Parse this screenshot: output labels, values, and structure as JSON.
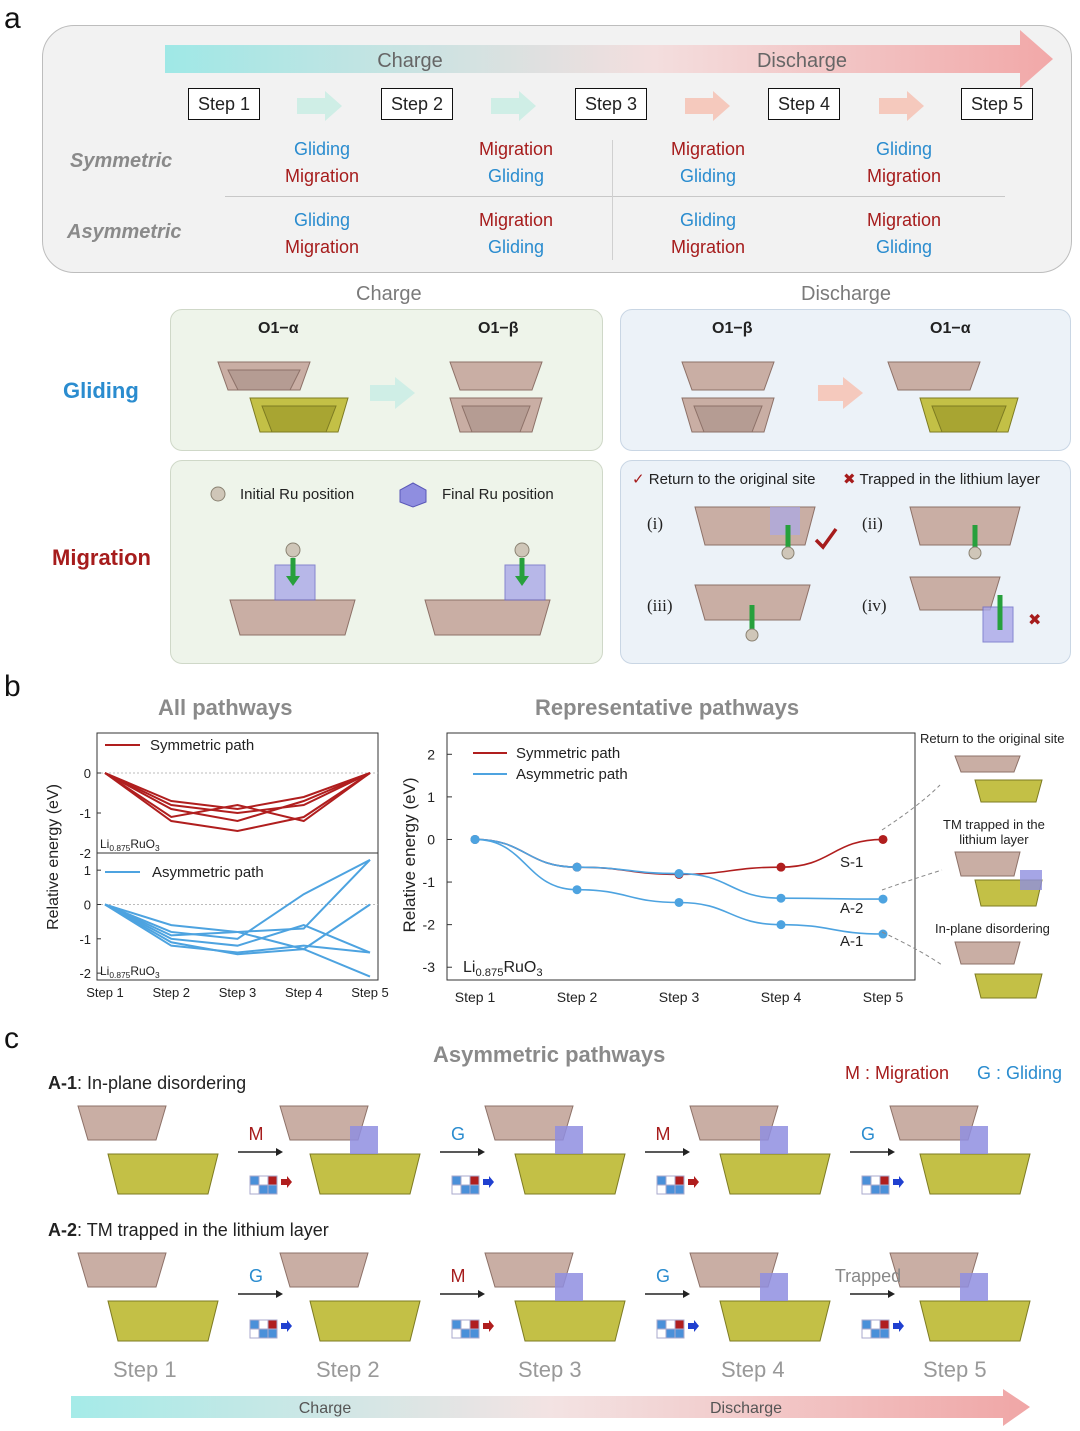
{
  "panel_labels": {
    "a": "a",
    "b": "b",
    "c": "c"
  },
  "panel_a": {
    "arrow_charge": "Charge",
    "arrow_discharge": "Discharge",
    "steps": [
      "Step 1",
      "Step 2",
      "Step 3",
      "Step 4",
      "Step 5"
    ],
    "symmetric_label": "Symmetric",
    "asymmetric_label": "Asymmetric",
    "symmetric": [
      [
        "Gliding",
        "Migration"
      ],
      [
        "Migration",
        "Gliding"
      ],
      [
        "Migration",
        "Gliding"
      ],
      [
        "Gliding",
        "Migration"
      ]
    ],
    "asymmetric": [
      [
        "Gliding",
        "Migration"
      ],
      [
        "Migration",
        "Gliding"
      ],
      [
        "Gliding",
        "Migration"
      ],
      [
        "Migration",
        "Gliding"
      ]
    ],
    "charge_heading": "Charge",
    "discharge_heading": "Discharge",
    "gliding_label": "Gliding",
    "migration_label": "Migration",
    "o1_alpha": "O1−α",
    "o1_beta": "O1−β",
    "initial_ru": "Initial Ru position",
    "final_ru": "Final Ru position",
    "return_label": "Return to the original site",
    "trapped_label": "Trapped in the lithium layer",
    "roman": [
      "(i)",
      "(ii)",
      "(iii)",
      "(iv)"
    ],
    "check_mark": "✓",
    "cross_mark": "✖"
  },
  "panel_b": {
    "all_title": "All pathways",
    "rep_title": "Representative pathways",
    "ylabel": "Relative energy (eV)",
    "sym_legend": "Symmetric path",
    "asym_legend": "Asymmetric path",
    "formula_base": "Li",
    "formula_sub": "0.875",
    "formula_tail": "RuO",
    "formula_sub3": "3",
    "side_return": "Return to the original site",
    "side_trapped_1": "TM trapped in the",
    "side_trapped_2": "lithium layer",
    "side_disorder": "In-plane disordering",
    "curve_labels": [
      "S-1",
      "A-2",
      "A-1"
    ]
  },
  "chart_data": [
    {
      "type": "line",
      "title": "All pathways",
      "panel": "top",
      "x": [
        "Step 1",
        "Step 2",
        "Step 3",
        "Step 4",
        "Step 5"
      ],
      "ylim": [
        -2,
        1
      ],
      "yticks": [
        0,
        -1,
        -2
      ],
      "series": [
        {
          "name": "Symmetric path",
          "values": [
            0,
            -0.7,
            -0.9,
            -0.6,
            0
          ]
        },
        {
          "values": [
            0,
            -0.8,
            -1.0,
            -0.8,
            0
          ]
        },
        {
          "values": [
            0,
            -1.1,
            -0.8,
            -1.2,
            0
          ]
        },
        {
          "values": [
            0,
            -1.2,
            -1.45,
            -1.1,
            0
          ]
        },
        {
          "values": [
            0,
            -0.9,
            -1.2,
            -0.7,
            0
          ]
        }
      ]
    },
    {
      "type": "line",
      "panel": "bottom",
      "x": [
        "Step 1",
        "Step 2",
        "Step 3",
        "Step 4",
        "Step 5"
      ],
      "ylim": [
        -2.2,
        1.5
      ],
      "yticks": [
        1,
        0,
        -1,
        -2
      ],
      "series": [
        {
          "name": "Asymmetric path",
          "values": [
            0,
            -0.6,
            -0.8,
            -0.7,
            1.3
          ]
        },
        {
          "values": [
            0,
            -0.8,
            -1.0,
            0.3,
            1.3
          ]
        },
        {
          "values": [
            0,
            -1.1,
            -1.45,
            -1.3,
            -2.1
          ]
        },
        {
          "values": [
            0,
            -1.2,
            -1.4,
            -1.2,
            -1.4
          ]
        },
        {
          "values": [
            0,
            -0.9,
            -0.8,
            -1.3,
            0
          ]
        },
        {
          "values": [
            0,
            -1.0,
            -1.2,
            -0.6,
            -1.4
          ]
        }
      ]
    },
    {
      "type": "line",
      "title": "Representative pathways",
      "x": [
        "Step 1",
        "Step 2",
        "Step 3",
        "Step 4",
        "Step 5"
      ],
      "ylabel": "Relative energy (eV)",
      "ylim": [
        -3.3,
        2.5
      ],
      "yticks": [
        2,
        1,
        0,
        -1,
        -2,
        -3
      ],
      "series": [
        {
          "name": "S-1",
          "values": [
            0,
            -0.65,
            -0.82,
            -0.65,
            0
          ],
          "color": "#b01e1e"
        },
        {
          "name": "A-2",
          "values": [
            0,
            -0.65,
            -0.8,
            -1.38,
            -1.4
          ],
          "color": "#4da3e0"
        },
        {
          "name": "A-1",
          "values": [
            0,
            -1.18,
            -1.48,
            -2.0,
            -2.22
          ],
          "color": "#4da3e0"
        }
      ]
    }
  ],
  "panel_c": {
    "title": "Asymmetric pathways",
    "legend_m": "M : Migration",
    "legend_g": "G : Gliding",
    "a1_tag": "A-1",
    "a1_desc": ": In-plane disordering",
    "a2_tag": "A-2",
    "a2_desc": ": TM trapped in the lithium layer",
    "a1_ops": [
      "M",
      "G",
      "M",
      "G"
    ],
    "a2_ops": [
      "G",
      "M",
      "G",
      "Trapped"
    ],
    "steps": [
      "Step 1",
      "Step 2",
      "Step 3",
      "Step 4",
      "Step 5"
    ],
    "arrow_charge": "Charge",
    "arrow_discharge": "Discharge"
  },
  "colors": {
    "blue": "#2a8ccf",
    "red": "#a61c1c",
    "octa": "#b59c93",
    "yellow": "#a8a532",
    "purple": "#7b74d6"
  }
}
